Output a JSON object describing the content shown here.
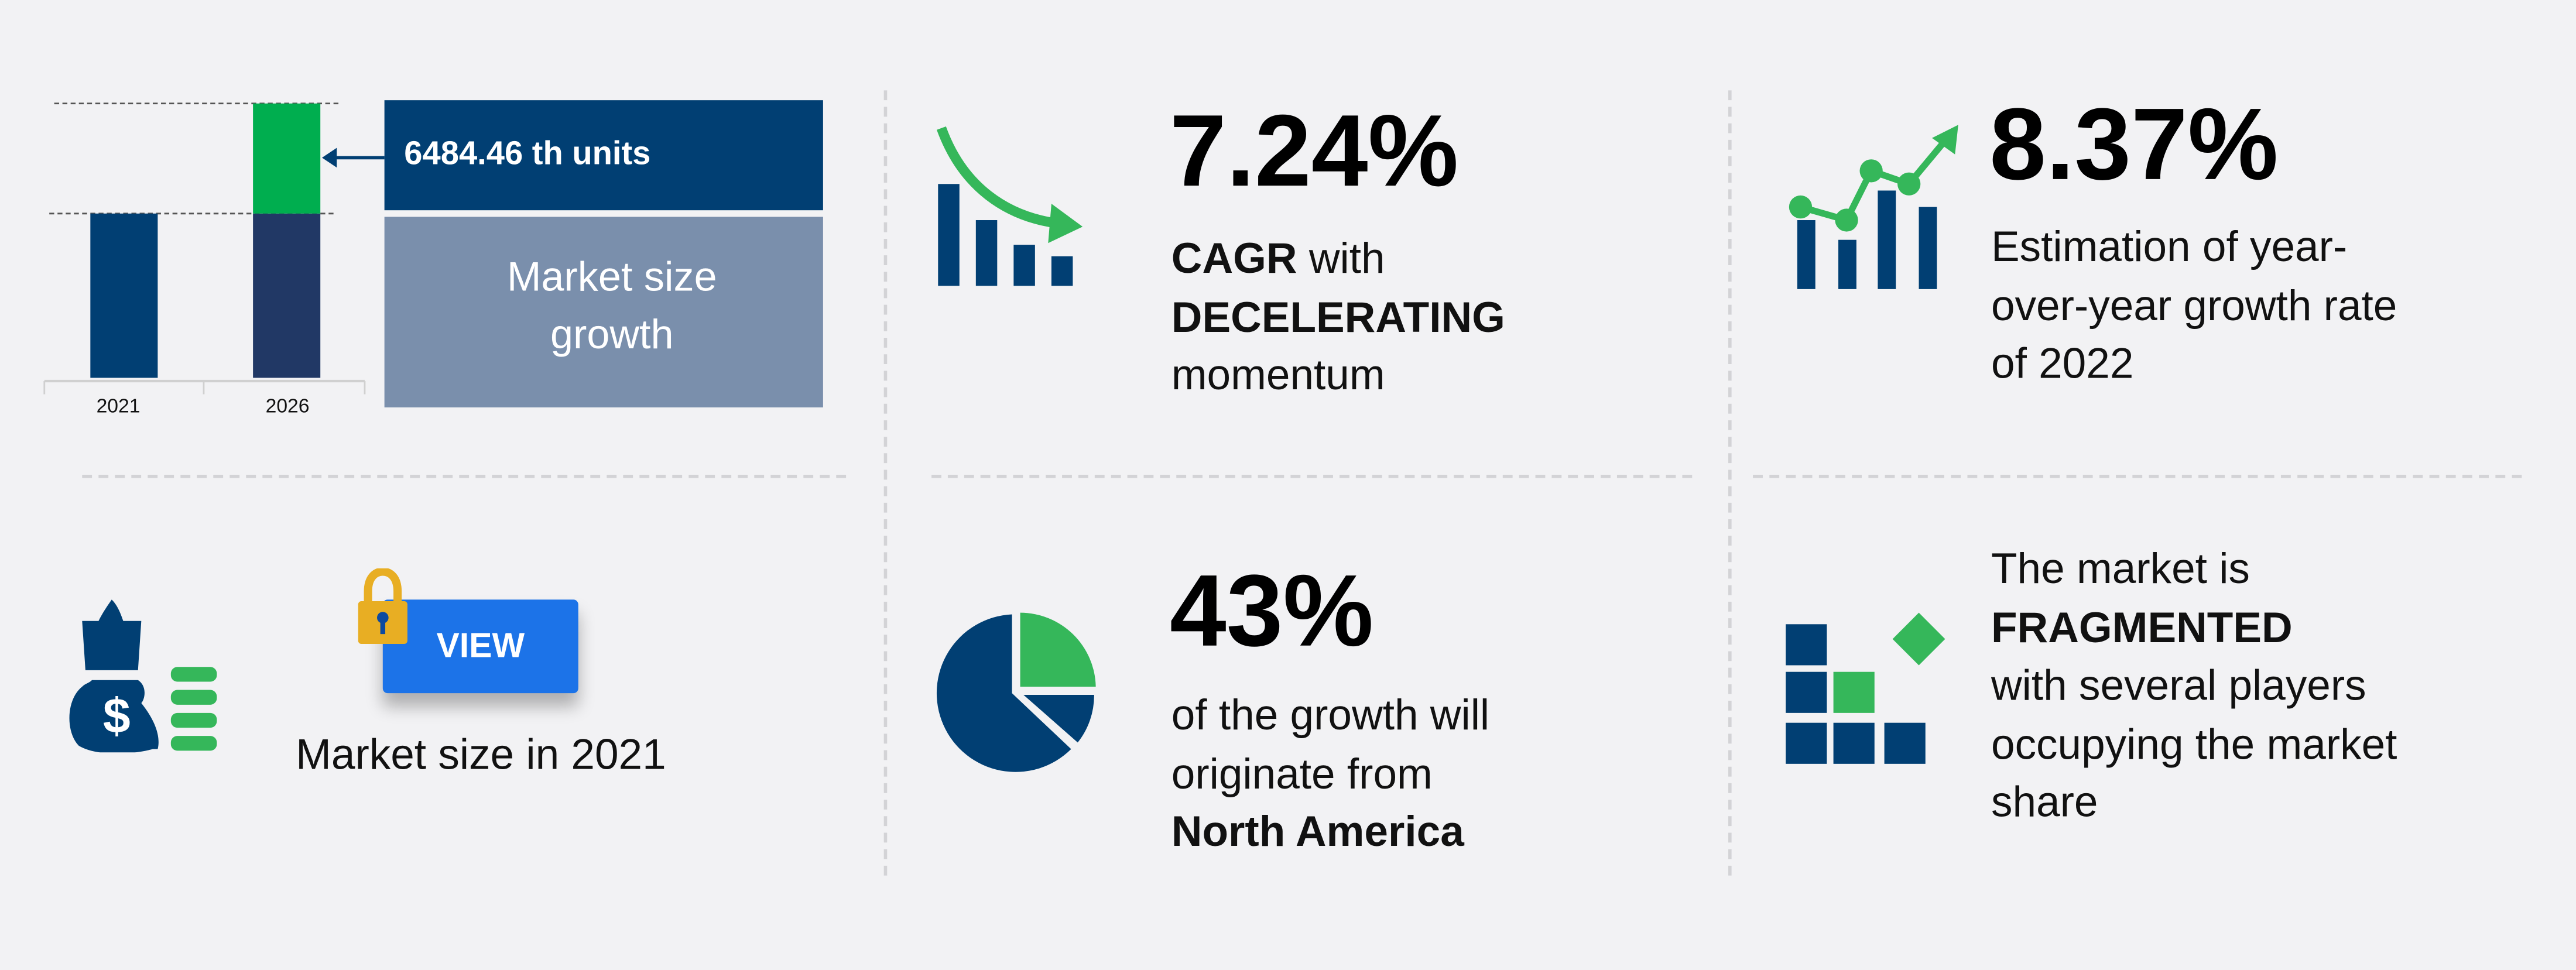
{
  "chart_data": {
    "type": "bar",
    "categories": [
      "2021",
      "2026"
    ],
    "series": [
      {
        "values": [
          100,
          100
        ]
      },
      {
        "values": [
          0,
          67
        ]
      }
    ],
    "annotation": "6484.46 th units",
    "legend_box": "Market size growth",
    "colors": {
      "base_2021": "#013f73",
      "base_2026": "#213865",
      "growth": "#00ae4f"
    }
  },
  "market_size": {
    "button_label": "VIEW",
    "caption": "Market size in 2021"
  },
  "cagr": {
    "value": "7.24%",
    "line1_bold": "CAGR",
    "line1_rest": " with",
    "line2": "DECELERATING",
    "line3": "momentum"
  },
  "yoy": {
    "value": "8.37%",
    "lines": [
      "Estimation of year-",
      "over-year growth rate",
      "of 2022"
    ]
  },
  "region": {
    "value": "43%",
    "lines": [
      "of the growth will",
      "originate from"
    ],
    "region_name": "North America"
  },
  "fragmentation": {
    "lines": [
      "The market is",
      "FRAGMENTED",
      "with several players",
      "occupying the market",
      "share"
    ]
  },
  "colors": {
    "navy": "#013f73",
    "green": "#35b75a",
    "button_blue": "#1c73e8",
    "lock_gold": "#e8ae23",
    "box_grey": "#7a8fac"
  }
}
